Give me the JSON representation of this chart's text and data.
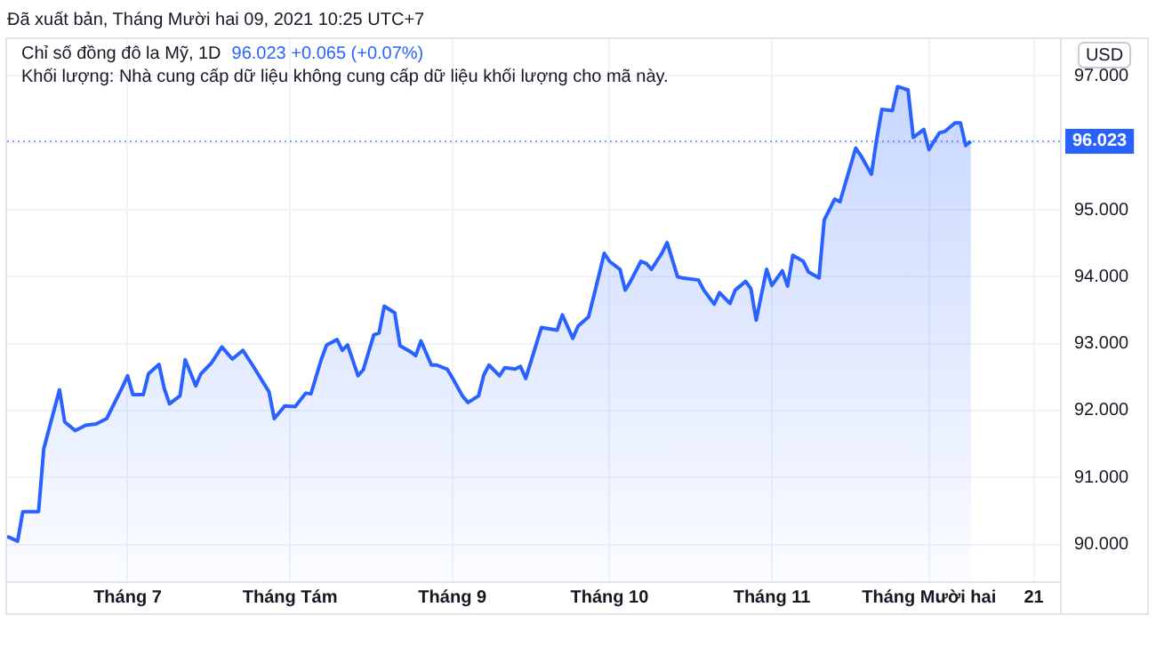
{
  "chart_data": {
    "type": "area",
    "title": "Chỉ số đồng đô la Mỹ, 1D",
    "ylabel": "USD",
    "annotations": [
      "Đã xuất bản, Tháng Mười hai 09, 2021 10:25 UTC+7",
      "96.023 +0.065 (+0.07%)",
      "Khối lượng: Nhà cung cấp dữ liệu không cung cấp dữ liệu khối lượng cho mã này."
    ],
    "x": [
      "2021-06-08",
      "2021-06-10",
      "2021-06-11",
      "2021-06-14",
      "2021-06-15",
      "2021-06-18",
      "2021-06-19",
      "2021-06-21",
      "2021-06-23",
      "2021-06-25",
      "2021-06-27",
      "2021-06-30",
      "2021-07-01",
      "2021-07-02",
      "2021-07-04",
      "2021-07-05",
      "2021-07-07",
      "2021-07-08",
      "2021-07-09",
      "2021-07-11",
      "2021-07-12",
      "2021-07-14",
      "2021-07-15",
      "2021-07-17",
      "2021-07-19",
      "2021-07-21",
      "2021-07-23",
      "2021-07-25",
      "2021-07-28",
      "2021-07-29",
      "2021-07-31",
      "2021-08-02",
      "2021-08-04",
      "2021-08-05",
      "2021-08-07",
      "2021-08-08",
      "2021-08-10",
      "2021-08-11",
      "2021-08-12",
      "2021-08-14",
      "2021-08-15",
      "2021-08-17",
      "2021-08-18",
      "2021-08-19",
      "2021-08-21",
      "2021-08-22",
      "2021-08-24",
      "2021-08-25",
      "2021-08-26",
      "2021-08-28",
      "2021-08-29",
      "2021-08-31",
      "2021-09-01",
      "2021-09-03",
      "2021-09-04",
      "2021-09-06",
      "2021-09-07",
      "2021-09-08",
      "2021-09-10",
      "2021-09-11",
      "2021-09-13",
      "2021-09-14",
      "2021-09-15",
      "2021-09-18",
      "2021-09-21",
      "2021-09-22",
      "2021-09-24",
      "2021-09-25",
      "2021-09-27",
      "2021-09-28",
      "2021-09-30",
      "2021-10-01",
      "2021-10-03",
      "2021-10-04",
      "2021-10-05",
      "2021-10-07",
      "2021-10-08",
      "2021-10-09",
      "2021-10-11",
      "2021-10-12",
      "2021-10-14",
      "2021-10-15",
      "2021-10-18",
      "2021-10-19",
      "2021-10-21",
      "2021-10-22",
      "2021-10-24",
      "2021-10-25",
      "2021-10-27",
      "2021-10-28",
      "2021-10-29",
      "2021-10-31",
      "2021-11-01",
      "2021-11-03",
      "2021-11-04",
      "2021-11-05",
      "2021-11-07",
      "2021-11-08",
      "2021-11-10",
      "2021-11-11",
      "2021-11-13",
      "2021-11-14",
      "2021-11-17",
      "2021-11-18",
      "2021-11-20",
      "2021-11-21",
      "2021-11-22",
      "2021-11-24",
      "2021-11-25",
      "2021-11-27",
      "2021-11-28",
      "2021-11-30",
      "2021-12-01",
      "2021-12-02",
      "2021-12-03",
      "2021-12-04",
      "2021-12-06",
      "2021-12-07",
      "2021-12-08",
      "2021-12-09"
    ],
    "series": [
      {
        "color": "#2962ff",
        "values": [
          90.12,
          90.05,
          90.49,
          90.49,
          91.43,
          92.31,
          91.83,
          91.7,
          91.78,
          91.8,
          91.88,
          92.35,
          92.52,
          92.24,
          92.24,
          92.55,
          92.69,
          92.33,
          92.1,
          92.22,
          92.76,
          92.37,
          92.55,
          92.71,
          92.95,
          92.77,
          92.9,
          92.66,
          92.28,
          91.88,
          92.07,
          92.06,
          92.26,
          92.25,
          92.77,
          92.98,
          93.06,
          92.9,
          92.98,
          92.52,
          92.61,
          93.13,
          93.16,
          93.56,
          93.46,
          92.97,
          92.88,
          92.82,
          93.04,
          92.68,
          92.68,
          92.62,
          92.49,
          92.21,
          92.12,
          92.22,
          92.53,
          92.68,
          92.52,
          92.64,
          92.62,
          92.66,
          92.48,
          93.24,
          93.2,
          93.43,
          93.08,
          93.26,
          93.4,
          93.71,
          94.35,
          94.23,
          94.11,
          93.8,
          93.93,
          94.23,
          94.2,
          94.11,
          94.35,
          94.51,
          94.0,
          93.98,
          93.95,
          93.8,
          93.59,
          93.76,
          93.6,
          93.8,
          93.93,
          93.82,
          93.35,
          94.11,
          93.87,
          94.09,
          93.86,
          94.32,
          94.23,
          94.07,
          93.98,
          94.85,
          95.16,
          95.12,
          95.92,
          95.81,
          95.53,
          96.05,
          96.5,
          96.48,
          96.84,
          96.79,
          96.08,
          96.2,
          95.9,
          96.03,
          96.15,
          96.17,
          96.3,
          96.3,
          95.96,
          96.023
        ]
      }
    ],
    "xlim": [
      "2021-06-08",
      "2021-12-26"
    ],
    "xticks": [
      {
        "value": "2021-07-01",
        "label": "Tháng 7"
      },
      {
        "value": "2021-08-01",
        "label": "Tháng Tám"
      },
      {
        "value": "2021-09-01",
        "label": "Tháng 9"
      },
      {
        "value": "2021-10-01",
        "label": "Tháng 10"
      },
      {
        "value": "2021-11-01",
        "label": "Tháng 11"
      },
      {
        "value": "2021-12-01",
        "label": "Tháng Mười hai"
      },
      {
        "value": "2021-12-21",
        "label": "21"
      }
    ],
    "ylim": [
      89.45,
      97.55
    ],
    "yticks": [
      {
        "value": 90,
        "label": "90.000"
      },
      {
        "value": 91,
        "label": "91.000"
      },
      {
        "value": 92,
        "label": "92.000"
      },
      {
        "value": 93,
        "label": "93.000"
      },
      {
        "value": 94,
        "label": "94.000"
      },
      {
        "value": 95,
        "label": "95.000"
      },
      {
        "value": 96,
        "label": null
      },
      {
        "value": 97,
        "label": "97.000"
      }
    ],
    "ref_lines": [
      {
        "axis": "y",
        "value": 96.023,
        "label": "96.023",
        "color": "#2962ff",
        "line_style": "dotted"
      }
    ],
    "grid": true,
    "legend": false,
    "marker": "none"
  }
}
